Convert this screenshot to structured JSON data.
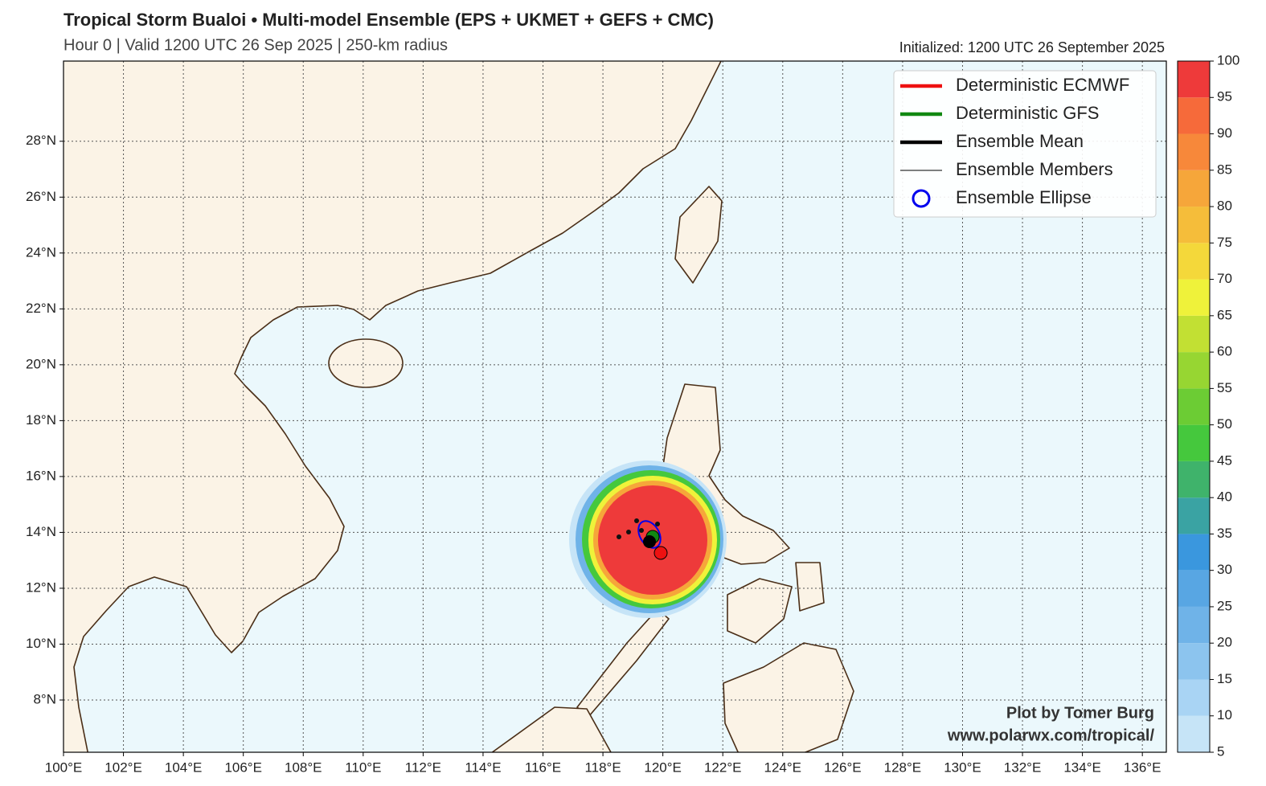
{
  "map": {
    "title": "Tropical Storm Bualoi • Multi-model Ensemble (EPS + UKMET + GEFS + CMC)",
    "subtitle": "Hour 0 | Valid 1200 UTC 26 Sep 2025 | 250-km radius",
    "initialized": "Initialized: 1200 UTC 26 September 2025",
    "lonlim": [
      100,
      136.8
    ],
    "latlim": [
      6.13,
      30.87
    ],
    "lon_ticks": [
      {
        "value": 100,
        "label": "100°E"
      },
      {
        "value": 102,
        "label": "102°E"
      },
      {
        "value": 104,
        "label": "104°E"
      },
      {
        "value": 106,
        "label": "106°E"
      },
      {
        "value": 108,
        "label": "108°E"
      },
      {
        "value": 110,
        "label": "110°E"
      },
      {
        "value": 112,
        "label": "112°E"
      },
      {
        "value": 114,
        "label": "114°E"
      },
      {
        "value": 116,
        "label": "116°E"
      },
      {
        "value": 118,
        "label": "118°E"
      },
      {
        "value": 120,
        "label": "120°E"
      },
      {
        "value": 122,
        "label": "122°E"
      },
      {
        "value": 124,
        "label": "124°E"
      },
      {
        "value": 126,
        "label": "126°E"
      },
      {
        "value": 128,
        "label": "128°E"
      },
      {
        "value": 130,
        "label": "130°E"
      },
      {
        "value": 132,
        "label": "132°E"
      },
      {
        "value": 134,
        "label": "134°E"
      },
      {
        "value": 136,
        "label": "136°E"
      }
    ],
    "lat_ticks": [
      {
        "value": 8,
        "label": "8°N"
      },
      {
        "value": 10,
        "label": "10°N"
      },
      {
        "value": 12,
        "label": "12°N"
      },
      {
        "value": 14,
        "label": "14°N"
      },
      {
        "value": 16,
        "label": "16°N"
      },
      {
        "value": 18,
        "label": "18°N"
      },
      {
        "value": 20,
        "label": "20°N"
      },
      {
        "value": 22,
        "label": "22°N"
      },
      {
        "value": 24,
        "label": "24°N"
      },
      {
        "value": 26,
        "label": "26°N"
      },
      {
        "value": 28,
        "label": "28°N"
      }
    ],
    "legend": [
      {
        "label": "Deterministic ECMWF",
        "color": "#ee1111",
        "marker": "line"
      },
      {
        "label": "Deterministic GFS",
        "color": "#118811",
        "marker": "line"
      },
      {
        "label": "Ensemble Mean",
        "color": "#000000",
        "marker": "line"
      },
      {
        "label": "Ensemble Members",
        "color": "#000000",
        "marker": "thin-line"
      },
      {
        "label": "Ensemble Ellipse",
        "color": "#0000ee",
        "marker": "circle"
      }
    ],
    "colorbar": {
      "ticks": [
        5,
        10,
        15,
        20,
        25,
        30,
        35,
        40,
        45,
        50,
        55,
        60,
        65,
        70,
        75,
        80,
        85,
        90,
        95,
        100
      ],
      "colors": [
        "#c6e4f7",
        "#a9d4f4",
        "#8cc4ee",
        "#6fb3e8",
        "#58a6e3",
        "#3a97de",
        "#3aa3a3",
        "#3fb36b",
        "#45c83d",
        "#6ccc34",
        "#97d632",
        "#c2e033",
        "#eff23a",
        "#f4d83a",
        "#f5bd3a",
        "#f6a63a",
        "#f7883a",
        "#f66a3a",
        "#ee3a3a"
      ]
    },
    "credit": [
      "Plot by Tomer Burg",
      "www.polarwx.com/tropical/"
    ]
  }
}
